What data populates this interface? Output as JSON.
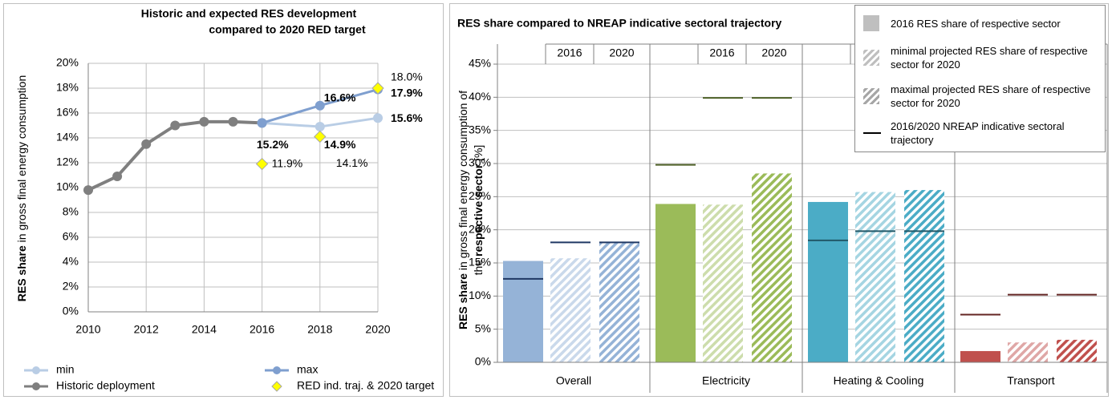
{
  "chart_data": [
    {
      "type": "line",
      "title": [
        "Historic and expected RES development",
        "compared to 2020 RED target"
      ],
      "y_label": [
        {
          "text": "RES share",
          "bold": true
        },
        {
          "text": " in gross final energy consumption",
          "bold": false
        }
      ],
      "xlim": [
        2010,
        2020
      ],
      "xticks": [
        2010,
        2012,
        2014,
        2016,
        2018,
        2020
      ],
      "ylim": [
        0,
        20
      ],
      "yticks": [
        {
          "value": 0,
          "label": "0%"
        },
        {
          "value": 2,
          "label": "2%"
        },
        {
          "value": 4,
          "label": "4%"
        },
        {
          "value": 6,
          "label": "6%"
        },
        {
          "value": 8,
          "label": "8%"
        },
        {
          "value": 10,
          "label": "10%"
        },
        {
          "value": 12,
          "label": "12%"
        },
        {
          "value": 14,
          "label": "14%"
        },
        {
          "value": 16,
          "label": "16%"
        },
        {
          "value": 18,
          "label": "18%"
        },
        {
          "value": 20,
          "label": "20%"
        }
      ],
      "grid": true,
      "series": [
        {
          "name": "min",
          "color": "#b9cde5",
          "label_color": "#a3bde0",
          "label_bold": true,
          "marker": "circle",
          "x": [
            2016,
            2018,
            2020
          ],
          "values": [
            15.2,
            14.9,
            15.6
          ],
          "value_labels": [
            null,
            "14.9%",
            "15.6%"
          ]
        },
        {
          "name": "max",
          "color": "#7f9fcf",
          "label_color": "#5f86c4",
          "label_bold": true,
          "marker": "circle",
          "x": [
            2016,
            2018,
            2020
          ],
          "values": [
            15.2,
            16.6,
            17.9
          ],
          "value_labels": [
            null,
            "16.6%",
            "17.9%"
          ]
        },
        {
          "name": "Historic deployment",
          "color": "#7f7f7f",
          "label_color": "#7f7f7f",
          "label_bold": true,
          "marker": "circle",
          "x": [
            2010,
            2011,
            2012,
            2013,
            2014,
            2015,
            2016
          ],
          "values": [
            9.8,
            10.9,
            13.5,
            15.0,
            15.3,
            15.3,
            15.2
          ],
          "value_labels": [
            null,
            null,
            null,
            null,
            null,
            null,
            "15.2%"
          ]
        },
        {
          "name": "RED ind. traj. & 2020 target",
          "color": "#ffff00",
          "label_color": "#000000",
          "label_bold": false,
          "marker": "diamond",
          "x": [
            2016,
            2018,
            2020
          ],
          "values": [
            11.9,
            14.1,
            18.0
          ],
          "value_labels": [
            "11.9%",
            "14.1%",
            "18.0%"
          ]
        }
      ]
    },
    {
      "type": "bar",
      "title": "RES share compared to NREAP indicative sectoral trajectory",
      "y_label": [
        [
          {
            "text": "RES share",
            "bold": true
          },
          {
            "text": " in gross final energy consumption of",
            "bold": false
          }
        ],
        [
          {
            "text": "the ",
            "bold": false
          },
          {
            "text": "respective sector",
            "bold": true
          },
          {
            "text": " [%]",
            "bold": false
          }
        ]
      ],
      "ylim": [
        0,
        45
      ],
      "yticks": [
        {
          "value": 0,
          "label": "0%"
        },
        {
          "value": 5,
          "label": "5%"
        },
        {
          "value": 10,
          "label": "10%"
        },
        {
          "value": 15,
          "label": "15%"
        },
        {
          "value": 20,
          "label": "20%"
        },
        {
          "value": 25,
          "label": "25%"
        },
        {
          "value": 30,
          "label": "30%"
        },
        {
          "value": 35,
          "label": "35%"
        },
        {
          "value": 40,
          "label": "40%"
        },
        {
          "value": 45,
          "label": "45%"
        }
      ],
      "grid": true,
      "categories": [
        "Overall",
        "Electricity",
        "Heating & Cooling",
        "Transport"
      ],
      "category_colors": [
        "#95b3d7",
        "#9bbb59",
        "#4bacc6",
        "#c0504d"
      ],
      "column_labels": [
        "2016",
        "2020"
      ],
      "series": [
        {
          "name": "2016 RES share of respective sector",
          "color": "#bfbfbf",
          "fill": "solid",
          "values": [
            15.3,
            23.9,
            24.2,
            1.7
          ]
        },
        {
          "name": "minimal projected RES share of respective sector for 2020",
          "color": "#bfbfbf",
          "fill": "hatch-light",
          "values": [
            15.7,
            23.8,
            25.7,
            3.0
          ]
        },
        {
          "name": "maximal projected RES share of respective sector for 2020",
          "color": "#a6a6a6",
          "fill": "hatch-dark",
          "values": [
            18.1,
            28.5,
            26.0,
            3.4
          ]
        },
        {
          "name": "2016/2020 NREAP indicative sectoral trajectory",
          "color": "#000000",
          "fill": "line",
          "category_colors": [
            "#1f3864",
            "#4f6228",
            "#215868",
            "#632523"
          ],
          "values": [
            12.6,
            29.8,
            18.4,
            7.2
          ],
          "values_2020": [
            18.1,
            39.9,
            19.8,
            10.2
          ]
        }
      ]
    }
  ]
}
